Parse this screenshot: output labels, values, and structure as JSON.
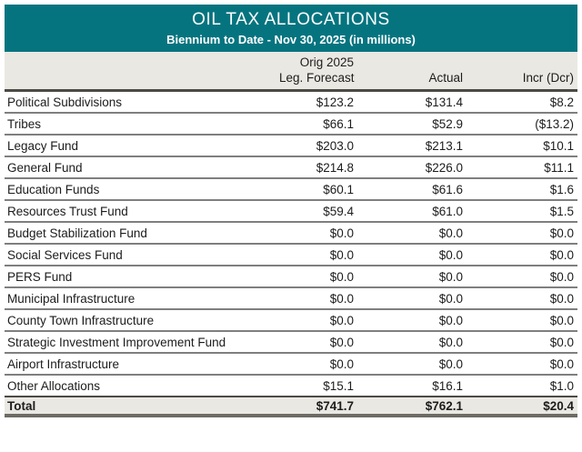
{
  "header": {
    "title": "OIL TAX ALLOCATIONS",
    "subtitle": "Biennium to Date - Nov 30, 2025 (in millions)"
  },
  "columns": {
    "orig_label": "Orig 2025",
    "forecast_label": "Leg. Forecast",
    "actual_label": "Actual",
    "incr_label": "Incr (Dcr)"
  },
  "rows": [
    {
      "label": "Political Subdivisions",
      "forecast": "$123.2",
      "actual": "$131.4",
      "incr": "$8.2"
    },
    {
      "label": "Tribes",
      "forecast": "$66.1",
      "actual": "$52.9",
      "incr": "($13.2)"
    },
    {
      "label": "Legacy Fund",
      "forecast": "$203.0",
      "actual": "$213.1",
      "incr": "$10.1"
    },
    {
      "label": "General Fund",
      "forecast": "$214.8",
      "actual": "$226.0",
      "incr": "$11.1"
    },
    {
      "label": "Education Funds",
      "forecast": "$60.1",
      "actual": "$61.6",
      "incr": "$1.6"
    },
    {
      "label": "Resources Trust Fund",
      "forecast": "$59.4",
      "actual": "$61.0",
      "incr": "$1.5"
    },
    {
      "label": "Budget Stabilization Fund",
      "forecast": "$0.0",
      "actual": "$0.0",
      "incr": "$0.0"
    },
    {
      "label": "Social Services Fund",
      "forecast": "$0.0",
      "actual": "$0.0",
      "incr": "$0.0"
    },
    {
      "label": "PERS Fund",
      "forecast": "$0.0",
      "actual": "$0.0",
      "incr": "$0.0"
    },
    {
      "label": "Municipal Infrastructure",
      "forecast": "$0.0",
      "actual": "$0.0",
      "incr": "$0.0"
    },
    {
      "label": "County Town Infrastructure",
      "forecast": "$0.0",
      "actual": "$0.0",
      "incr": "$0.0"
    },
    {
      "label": "Strategic Investment Improvement Fund",
      "forecast": "$0.0",
      "actual": "$0.0",
      "incr": "$0.0"
    },
    {
      "label": "Airport Infrastructure",
      "forecast": "$0.0",
      "actual": "$0.0",
      "incr": "$0.0"
    },
    {
      "label": "Other Allocations",
      "forecast": "$15.1",
      "actual": "$16.1",
      "incr": "$1.0"
    }
  ],
  "total": {
    "label": "Total",
    "forecast": "$741.7",
    "actual": "$762.1",
    "incr": "$20.4"
  },
  "colors": {
    "header_bg": "#05747F",
    "header_text": "#FFFFFF",
    "subheader_bg": "#EAE8E2",
    "row_rule": "#7F7F7F",
    "heavy_rule_dark": "#4D4A44",
    "heavy_rule_bottom": "#6E6A64",
    "text": "#1C1C1C"
  },
  "chart_data": {
    "type": "table",
    "title": "OIL TAX ALLOCATIONS",
    "subtitle": "Biennium to Date - Nov 30, 2025 (in millions)",
    "units": "millions USD",
    "categories": [
      "Political Subdivisions",
      "Tribes",
      "Legacy Fund",
      "General Fund",
      "Education Funds",
      "Resources Trust Fund",
      "Budget Stabilization Fund",
      "Social Services Fund",
      "PERS Fund",
      "Municipal Infrastructure",
      "County Town Infrastructure",
      "Strategic Investment Improvement Fund",
      "Airport Infrastructure",
      "Other Allocations"
    ],
    "series": [
      {
        "name": "Orig 2025 Leg. Forecast",
        "values": [
          123.2,
          66.1,
          203.0,
          214.8,
          60.1,
          59.4,
          0.0,
          0.0,
          0.0,
          0.0,
          0.0,
          0.0,
          0.0,
          15.1
        ]
      },
      {
        "name": "Actual",
        "values": [
          131.4,
          52.9,
          213.1,
          226.0,
          61.6,
          61.0,
          0.0,
          0.0,
          0.0,
          0.0,
          0.0,
          0.0,
          0.0,
          16.1
        ]
      },
      {
        "name": "Incr (Dcr)",
        "values": [
          8.2,
          -13.2,
          10.1,
          11.1,
          1.6,
          1.5,
          0.0,
          0.0,
          0.0,
          0.0,
          0.0,
          0.0,
          0.0,
          1.0
        ]
      }
    ],
    "totals": {
      "forecast": 741.7,
      "actual": 762.1,
      "incr": 20.4
    }
  }
}
